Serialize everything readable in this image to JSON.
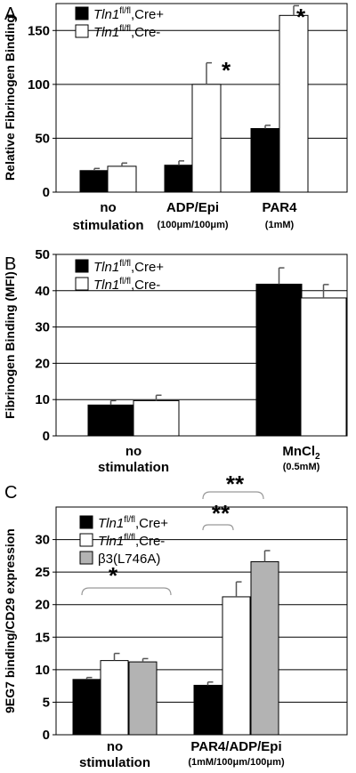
{
  "chart_data": [
    {
      "type": "bar",
      "panel_label": "A",
      "ylabel": "Relative Fibrinogen Binding",
      "ylim": [
        0,
        175
      ],
      "yticks": [
        "0",
        "50",
        "100",
        "150"
      ],
      "categories": [
        {
          "label": "no",
          "label2": "stimulation",
          "sub": ""
        },
        {
          "label": "ADP/Epi",
          "label2": "",
          "sub": "(100μm/100μm)"
        },
        {
          "label": "PAR4",
          "label2": "",
          "sub": "(1mM)"
        }
      ],
      "series": [
        {
          "name_italic": "Tln1",
          "name_sup": "fl/fl",
          "name_rest": ",Cre+",
          "color": "#000000",
          "values": [
            20,
            25,
            59
          ],
          "errors": [
            2,
            4,
            3
          ]
        },
        {
          "name_italic": "Tln1",
          "name_sup": "fl/fl",
          "name_rest": ",Cre-",
          "color": "#ffffff",
          "values": [
            24,
            100,
            164
          ],
          "errors": [
            3,
            20,
            9
          ]
        }
      ],
      "annotations": [
        "*",
        "*"
      ]
    },
    {
      "type": "bar",
      "panel_label": "B",
      "ylabel": "Fibrinogen Binding (MFI)",
      "ylim": [
        0,
        50
      ],
      "yticks": [
        "0",
        "10",
        "20",
        "30",
        "40",
        "50"
      ],
      "categories": [
        {
          "label": "no",
          "label2": "stimulation",
          "sub": ""
        },
        {
          "label": "MnCl",
          "label_sub": "2",
          "label2": "",
          "sub": "(0.5mM)"
        }
      ],
      "series": [
        {
          "name_italic": "Tln1",
          "name_sup": "fl/fl",
          "name_rest": ",Cre+",
          "color": "#000000",
          "values": [
            8.5,
            41.8
          ],
          "errors": [
            1.2,
            4.5
          ]
        },
        {
          "name_italic": "Tln1",
          "name_sup": "fl/fl",
          "name_rest": ",Cre-",
          "color": "#ffffff",
          "values": [
            9.7,
            38.0
          ],
          "errors": [
            1.5,
            3.7
          ]
        }
      ]
    },
    {
      "type": "bar",
      "panel_label": "C",
      "ylabel": "9EG7 binding/CD29 expression",
      "ylim": [
        0,
        35
      ],
      "yticks": [
        "0",
        "5",
        "10",
        "15",
        "20",
        "25",
        "30"
      ],
      "categories": [
        {
          "label": "no",
          "label2": "stimulation",
          "sub": ""
        },
        {
          "label": "PAR4/ADP/Epi",
          "label2": "",
          "sub": "(1mM/100μm/100μm)"
        }
      ],
      "series": [
        {
          "name_italic": "Tln1",
          "name_sup": "fl/fl",
          "name_rest": ",Cre+",
          "color": "#000000",
          "values": [
            8.5,
            7.6
          ],
          "errors": [
            0.3,
            0.5
          ]
        },
        {
          "name_italic": "Tln1",
          "name_sup": "fl/fl",
          "name_rest": ",Cre-",
          "color": "#ffffff",
          "values": [
            11.4,
            21.2
          ],
          "errors": [
            1.1,
            2.3
          ]
        },
        {
          "name_plain": "β3(L746A)",
          "color": "#b3b3b3",
          "values": [
            11.2,
            26.6
          ],
          "errors": [
            0.5,
            1.7
          ]
        }
      ],
      "annotations": [
        "*",
        "**",
        "**"
      ]
    }
  ]
}
